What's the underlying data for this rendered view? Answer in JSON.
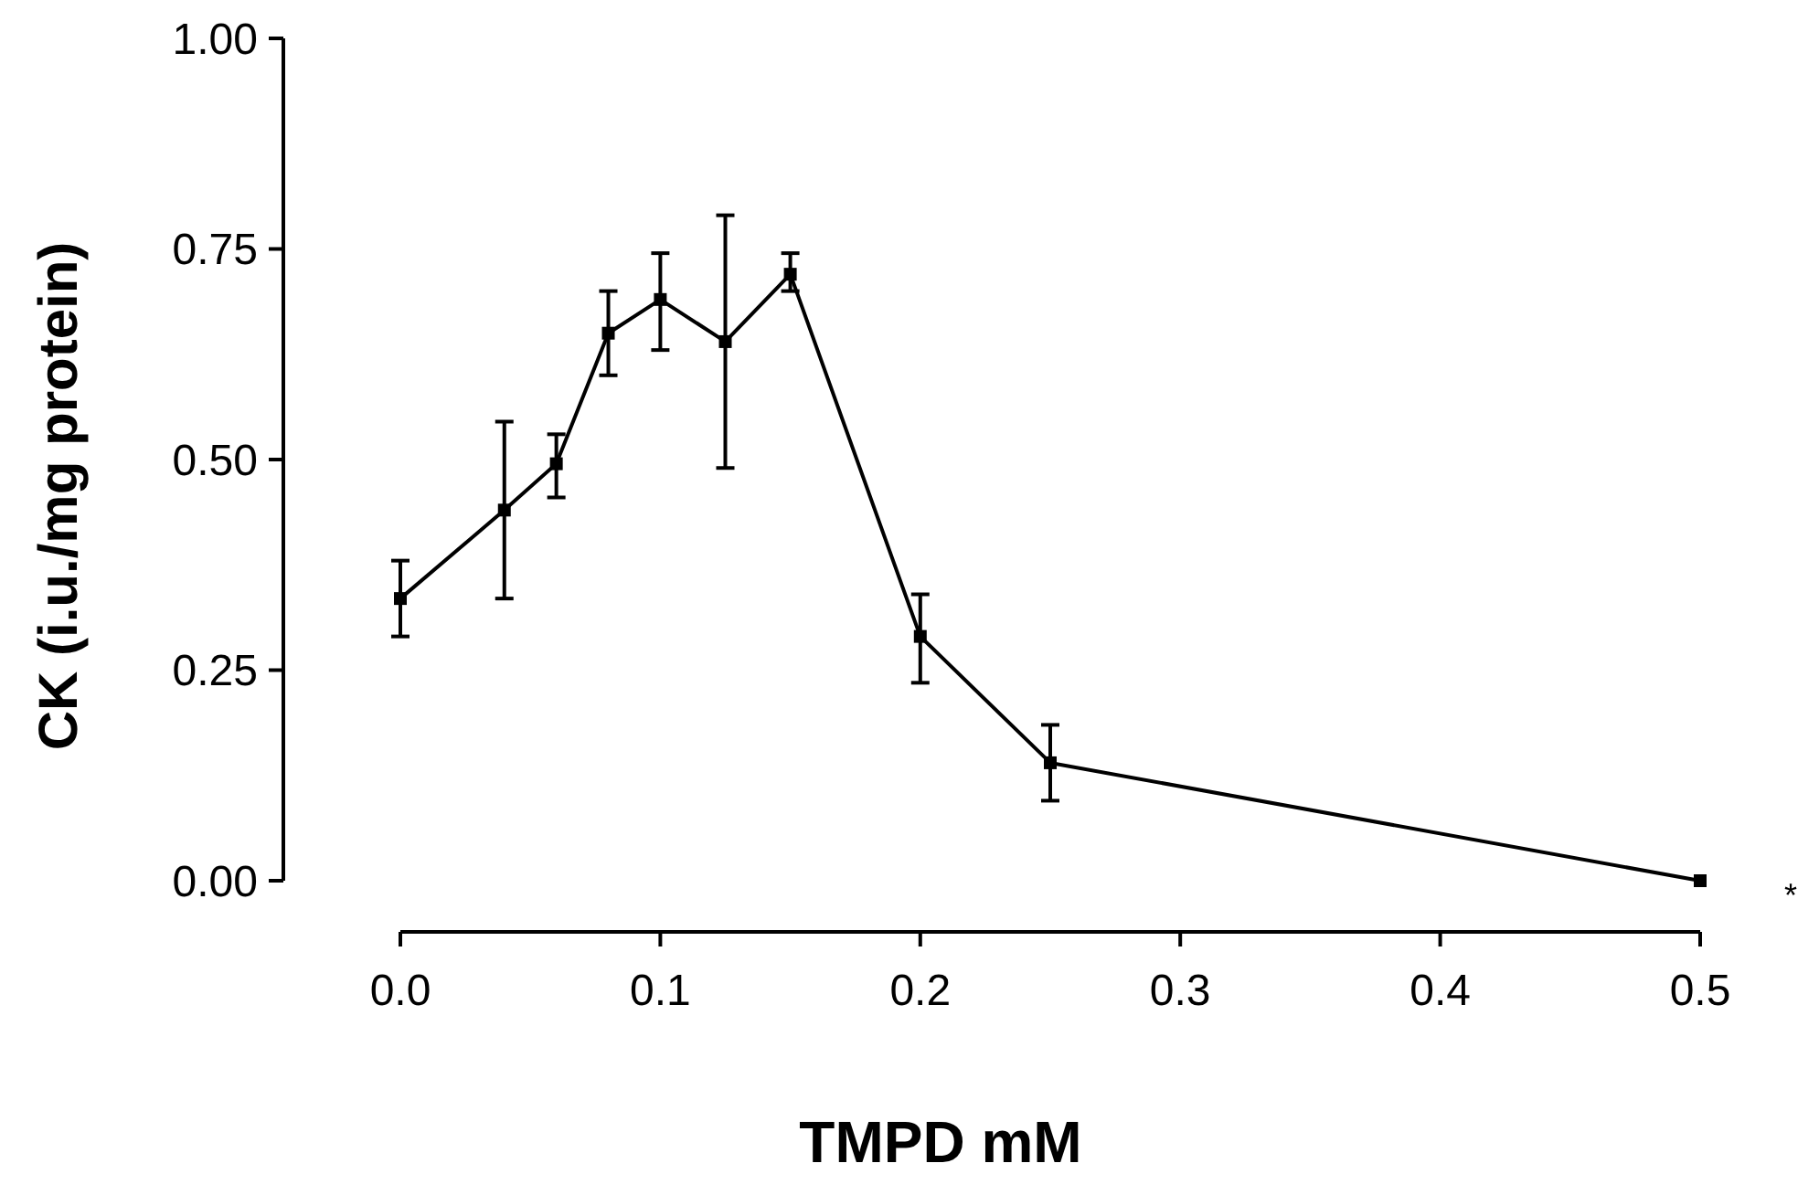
{
  "chart_data": {
    "type": "line",
    "xlabel": "TMPD mM",
    "ylabel": "CK (i.u./mg protein)",
    "x": [
      0,
      0.04,
      0.06,
      0.08,
      0.1,
      0.125,
      0.15,
      0.2,
      0.25,
      0.5
    ],
    "values": [
      0.335,
      0.44,
      0.495,
      0.65,
      0.69,
      0.64,
      0.72,
      0.29,
      0.14,
      0.0
    ],
    "errors": [
      [
        0.29,
        0.38
      ],
      [
        0.335,
        0.545
      ],
      [
        0.455,
        0.53
      ],
      [
        0.6,
        0.7
      ],
      [
        0.63,
        0.745
      ],
      [
        0.49,
        0.79
      ],
      [
        0.7,
        0.745
      ],
      [
        0.235,
        0.34
      ],
      [
        0.095,
        0.185
      ],
      null
    ],
    "color": "#000000",
    "marker": "square",
    "line_style": "solid",
    "xlim": [
      0,
      0.5
    ],
    "xticks": [
      {
        "value": 0,
        "label": "0.0"
      },
      0.1,
      0.2,
      0.3,
      0.4,
      0.5
    ],
    "ylim": [
      0,
      1
    ],
    "yticks": [
      {
        "value": 0,
        "label": "0.00"
      },
      0.25,
      {
        "value": 0.5,
        "label": "0.50"
      },
      0.75,
      {
        "value": 1,
        "label": "1.00"
      }
    ],
    "grid": false,
    "annotations": [
      "*"
    ]
  }
}
